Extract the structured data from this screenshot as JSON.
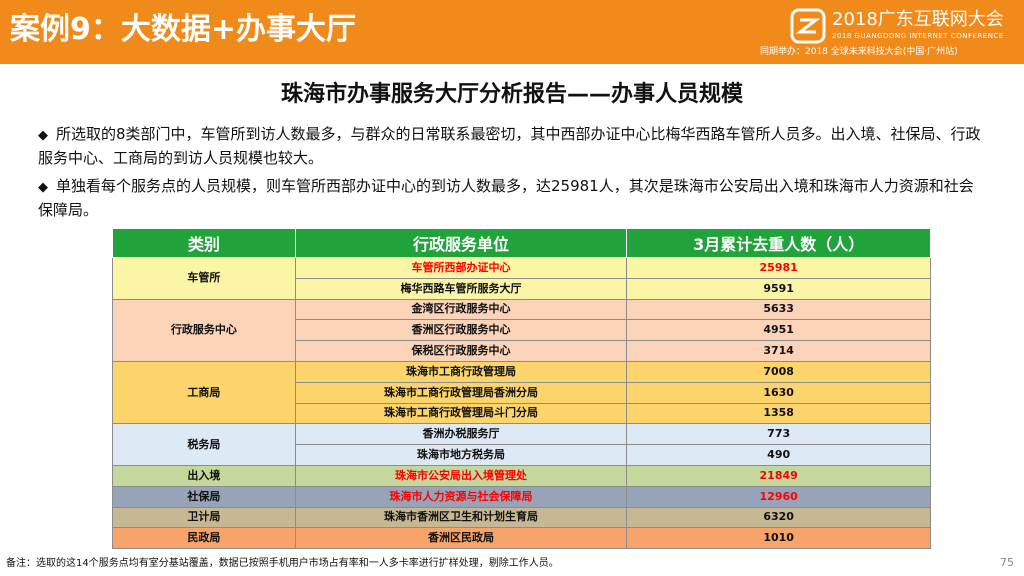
{
  "header": {
    "title": "案例9：大数据+办事大厅",
    "logo_text": "2018广东互联网大会",
    "logo_sub": "2018 GUANGDONG INTERNET CONFERENCE",
    "logo_co": "同期举办：2018 全球未来科技大会(中国·广州站)"
  },
  "report_title": "珠海市办事服务大厅分析报告——办事人员规模",
  "bullets": [
    {
      "mark": "◆",
      "text": "所选取的8类部门中，车管所到访人数最多，与群众的日常联系最密切，其中西部办证中心比梅华西路车管所人员多。出入境、社保局、行政服务中心、工商局的到访人员规模也较大。"
    },
    {
      "mark": "◆",
      "text": "单独看每个服务点的人员规模，则车管所西部办证中心的到访人数最多，达25981人，其次是珠海市公安局出入境和珠海市人力资源和社会保障局。"
    }
  ],
  "table": {
    "headers": [
      "类别",
      "行政服务单位",
      "3月累计去重人数（人）"
    ],
    "groups": [
      {
        "category": "车管所",
        "rows": [
          {
            "unit": "车管所西部办证中心",
            "count": "25981"
          },
          {
            "unit": "梅华西路车管所服务大厅",
            "count": "9591"
          }
        ]
      },
      {
        "category": "行政服务中心",
        "rows": [
          {
            "unit": "金湾区行政服务中心",
            "count": "5633"
          },
          {
            "unit": "香洲区行政服务中心",
            "count": "4951"
          },
          {
            "unit": "保税区行政服务中心",
            "count": "3714"
          }
        ]
      },
      {
        "category": "工商局",
        "rows": [
          {
            "unit": "珠海市工商行政管理局",
            "count": "7008"
          },
          {
            "unit": "珠海市工商行政管理局香洲分局",
            "count": "1630"
          },
          {
            "unit": "珠海市工商行政管理局斗门分局",
            "count": "1358"
          }
        ]
      },
      {
        "category": "税务局",
        "rows": [
          {
            "unit": "香洲办税服务厅",
            "count": "773"
          },
          {
            "unit": "珠海市地方税务局",
            "count": "490"
          }
        ]
      },
      {
        "category": "出入境",
        "rows": [
          {
            "unit": "珠海市公安局出入境管理处",
            "count": "21849"
          }
        ]
      },
      {
        "category": "社保局",
        "rows": [
          {
            "unit": "珠海市人力资源与社会保障局",
            "count": "12960"
          }
        ]
      },
      {
        "category": "卫计局",
        "rows": [
          {
            "unit": "珠海市香洲区卫生和计划生育局",
            "count": "6320"
          }
        ]
      },
      {
        "category": "民政局",
        "rows": [
          {
            "unit": "香洲区民政局",
            "count": "1010"
          }
        ]
      }
    ],
    "colors": {
      "header_bg": "#21a33b",
      "highlight_text": "#ff0000",
      "groups": [
        "#fbf6a6",
        "#fad3b8",
        "#fbd46b",
        "#dde9f4",
        "#c3d89a",
        "#96a3b9",
        "#c6b892",
        "#f7a36a"
      ]
    }
  },
  "footnote": "备注：选取的这14个服务点均有室分基站覆盖，数据已按照手机用户市场占有率和一人多卡率进行扩样处理，剔除工作人员。",
  "page_number": "75",
  "brand_color": "#f08a1a"
}
